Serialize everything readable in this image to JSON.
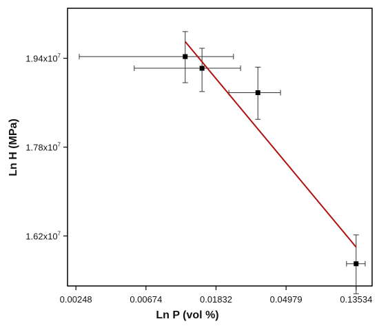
{
  "chart_data": {
    "type": "scatter",
    "xlabel": "Ln P (vol %)",
    "ylabel": "Ln H (MPa)",
    "x_scale": "log",
    "xlim": [
      0.0022,
      0.17
    ],
    "ylim": [
      15300000,
      20300000
    ],
    "x_ticks": [
      0.00248,
      0.00674,
      0.01832,
      0.04979,
      0.13534
    ],
    "x_tick_labels": [
      "0.00248",
      "0.00674",
      "0.01832",
      "0.04979",
      "0.13534"
    ],
    "y_ticks": [
      16200000,
      17800000,
      19400000
    ],
    "y_tick_labels": [
      {
        "mantissa": "1.62x10",
        "exponent": "7"
      },
      {
        "mantissa": "1.78x10",
        "exponent": "7"
      },
      {
        "mantissa": "1.94x10",
        "exponent": "7"
      }
    ],
    "grid": false,
    "series": [
      {
        "points": [
          {
            "x": 0.0118,
            "y": 19430000,
            "xerr_low": 0.0026,
            "xerr_high": 0.0235,
            "yerr_low": 18960000,
            "yerr_high": 19880000
          },
          {
            "x": 0.015,
            "y": 19220000,
            "xerr_low": 0.0057,
            "xerr_high": 0.026,
            "yerr_low": 18800000,
            "yerr_high": 19580000
          },
          {
            "x": 0.0333,
            "y": 18780000,
            "xerr_low": 0.022,
            "xerr_high": 0.046,
            "yerr_low": 18300000,
            "yerr_high": 19240000
          },
          {
            "x": 0.1353,
            "y": 15700000,
            "xerr_low": 0.118,
            "xerr_high": 0.154,
            "yerr_low": 15160000,
            "yerr_high": 16220000
          }
        ]
      }
    ],
    "fit_line": {
      "x": [
        0.0118,
        0.1353
      ],
      "y": [
        19700000,
        16000000
      ],
      "color": "#b01010"
    }
  }
}
